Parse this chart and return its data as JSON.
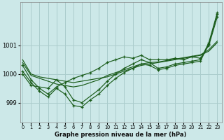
{
  "title": "Graphe pression niveau de la mer (hPa)",
  "bg_color": "#cce8e8",
  "grid_color": "#aacccc",
  "line_color": "#1a5c1a",
  "x_ticks": [
    0,
    1,
    2,
    3,
    4,
    5,
    6,
    7,
    8,
    9,
    10,
    11,
    12,
    13,
    14,
    15,
    16,
    17,
    18,
    19,
    20,
    21,
    22,
    23
  ],
  "y_ticks": [
    999,
    1000,
    1001
  ],
  "ylim": [
    998.3,
    1002.5
  ],
  "xlim": [
    -0.3,
    23.5
  ],
  "series_no_marker": [
    [
      1000.5,
      1000.0,
      999.9,
      999.85,
      999.8,
      999.75,
      999.7,
      999.75,
      999.8,
      999.85,
      999.9,
      1000.0,
      1000.1,
      1000.2,
      1000.3,
      1000.35,
      1000.4,
      1000.45,
      1000.5,
      1000.55,
      1000.6,
      1000.65,
      1000.8,
      1001.1
    ],
    [
      1000.4,
      999.95,
      999.85,
      999.75,
      999.65,
      999.6,
      999.55,
      999.6,
      999.7,
      999.8,
      999.95,
      1000.05,
      1000.15,
      1000.25,
      1000.35,
      1000.4,
      1000.42,
      1000.47,
      1000.52,
      1000.57,
      1000.62,
      1000.67,
      1000.85,
      1001.15
    ]
  ],
  "series_with_marker": [
    {
      "x": [
        0,
        1,
        2,
        3,
        4,
        5,
        6,
        7,
        8,
        9,
        10,
        11,
        12,
        13,
        14,
        15,
        16,
        17,
        18,
        19,
        20,
        21,
        22,
        23
      ],
      "y": [
        1000.3,
        999.8,
        999.5,
        999.3,
        999.55,
        999.7,
        999.85,
        999.95,
        1000.05,
        1000.2,
        1000.4,
        1000.5,
        1000.6,
        1000.55,
        1000.65,
        1000.5,
        1000.5,
        1000.5,
        1000.55,
        1000.5,
        1000.6,
        1000.55,
        1001.0,
        1002.0
      ]
    },
    {
      "x": [
        0,
        1,
        2,
        3,
        4,
        5,
        6,
        7,
        8,
        9,
        10,
        11,
        12,
        13,
        14,
        15,
        16,
        17,
        18,
        19,
        20,
        21,
        22,
        23
      ],
      "y": [
        1000.1,
        999.7,
        999.4,
        999.2,
        999.5,
        999.3,
        998.9,
        998.85,
        999.1,
        999.3,
        999.6,
        999.85,
        1000.05,
        1000.2,
        1000.35,
        1000.3,
        1000.15,
        1000.2,
        1000.3,
        1000.35,
        1000.4,
        1000.45,
        1001.05,
        1002.1
      ]
    },
    {
      "x": [
        0,
        1,
        3,
        4,
        5,
        6,
        7,
        9,
        10,
        11,
        12,
        13,
        14,
        15,
        16,
        17,
        18,
        19,
        20,
        21,
        22,
        23
      ],
      "y": [
        1000.0,
        999.6,
        999.5,
        999.8,
        999.55,
        999.1,
        999.0,
        999.45,
        999.75,
        1000.0,
        1000.2,
        1000.35,
        1000.5,
        1000.4,
        1000.2,
        1000.25,
        1000.35,
        1000.4,
        1000.45,
        1000.5,
        1001.1,
        1002.15
      ]
    }
  ]
}
